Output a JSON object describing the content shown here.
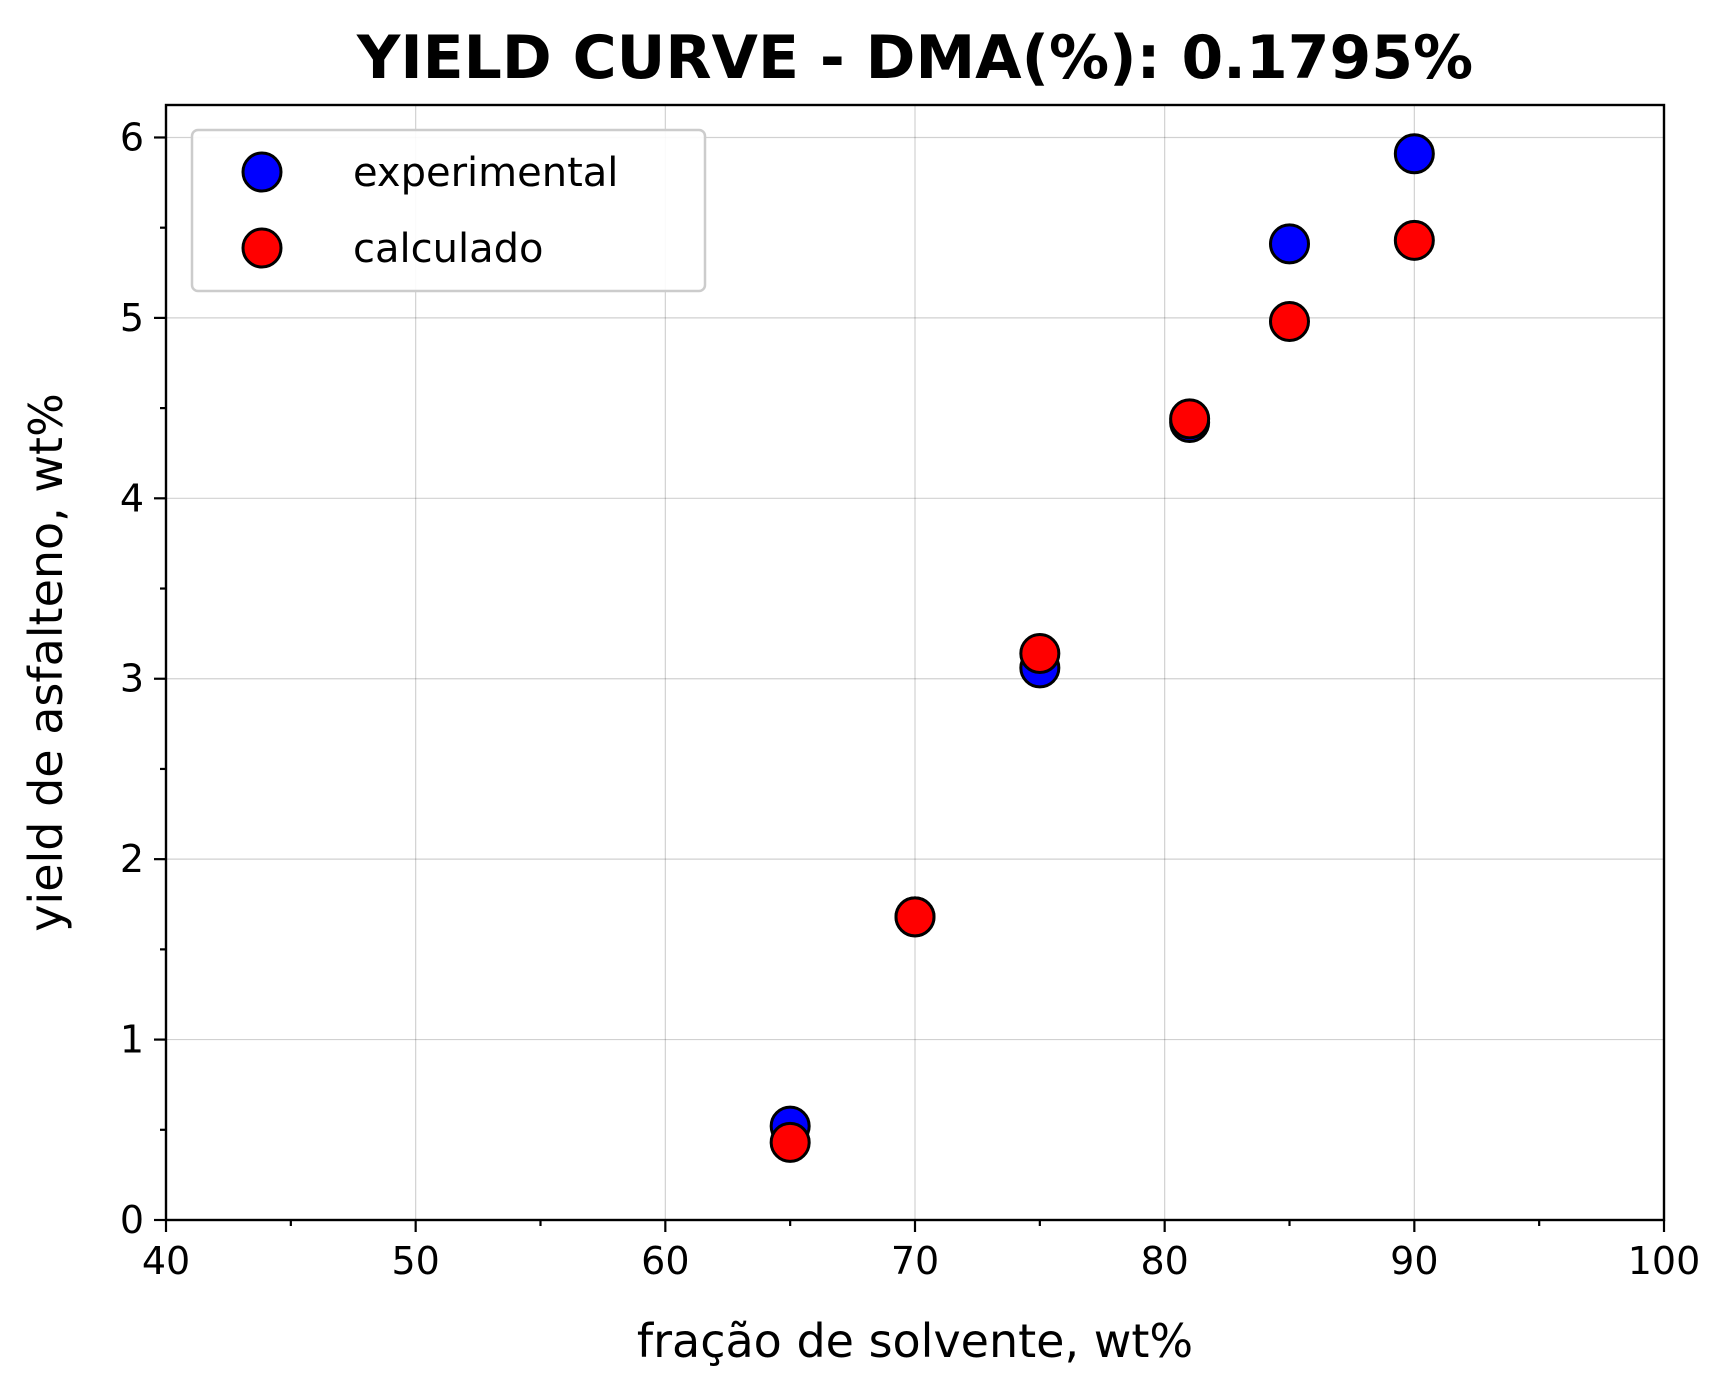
{
  "chart_data": {
    "type": "scatter",
    "title": "YIELD CURVE - DMA(%): 0.1795%",
    "xlabel": "fração de solvente, wt%",
    "ylabel": "yield de asfalteno, wt%",
    "xlim": [
      40,
      100
    ],
    "ylim": [
      0,
      6.18
    ],
    "xticks": [
      40,
      50,
      60,
      70,
      80,
      90,
      100
    ],
    "yticks": [
      0,
      1,
      2,
      3,
      4,
      5,
      6
    ],
    "grid": true,
    "legend_position": "upper-left",
    "series": [
      {
        "name": "experimental",
        "color": "#0000ff",
        "x": [
          65,
          70,
          75,
          81,
          85,
          90
        ],
        "y": [
          0.52,
          1.68,
          3.06,
          4.42,
          5.41,
          5.91
        ]
      },
      {
        "name": "calculado",
        "color": "#ff0000",
        "x": [
          65,
          70,
          75,
          81,
          85,
          90
        ],
        "y": [
          0.43,
          1.68,
          3.14,
          4.44,
          4.98,
          5.43
        ]
      }
    ]
  }
}
